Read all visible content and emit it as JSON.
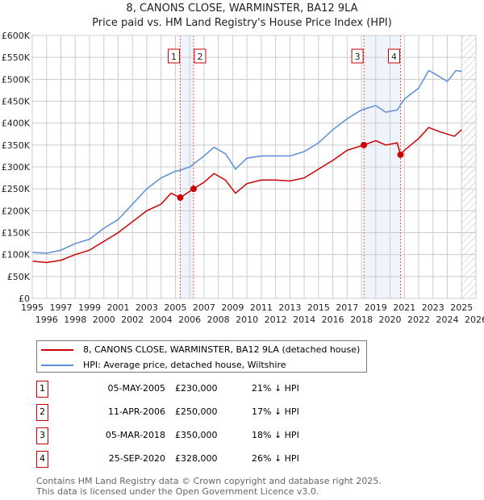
{
  "title": "8, CANONS CLOSE, WARMINSTER, BA12 9LA",
  "subtitle": "Price paid vs. HM Land Registry's House Price Index (HPI)",
  "chart_data": {
    "type": "line",
    "xlim": [
      1995,
      2026
    ],
    "ylim": [
      0,
      600000
    ],
    "x_ticks": [
      "1995",
      "1996",
      "1997",
      "1998",
      "1999",
      "2000",
      "2001",
      "2002",
      "2003",
      "2004",
      "2005",
      "2006",
      "2007",
      "2008",
      "2009",
      "2010",
      "2011",
      "2012",
      "2013",
      "2014",
      "2015",
      "2016",
      "2017",
      "2018",
      "2019",
      "2020",
      "2021",
      "2022",
      "2023",
      "2024",
      "2025",
      "2026"
    ],
    "y_ticks": [
      {
        "v": 0,
        "label": "£0"
      },
      {
        "v": 50000,
        "label": "£50K"
      },
      {
        "v": 100000,
        "label": "£100K"
      },
      {
        "v": 150000,
        "label": "£150K"
      },
      {
        "v": 200000,
        "label": "£200K"
      },
      {
        "v": 250000,
        "label": "£250K"
      },
      {
        "v": 300000,
        "label": "£300K"
      },
      {
        "v": 350000,
        "label": "£350K"
      },
      {
        "v": 400000,
        "label": "£400K"
      },
      {
        "v": 450000,
        "label": "£450K"
      },
      {
        "v": 500000,
        "label": "£500K"
      },
      {
        "v": 550000,
        "label": "£550K"
      },
      {
        "v": 600000,
        "label": "£600K"
      }
    ],
    "series": [
      {
        "name": "8, CANONS CLOSE, WARMINSTER, BA12 9LA (detached house)",
        "color": "#cc0000",
        "x": [
          1995,
          1996,
          1997,
          1998,
          1999,
          2000,
          2001,
          2002,
          2003,
          2004,
          2004.7,
          2005.34,
          2006.27,
          2007,
          2007.7,
          2008.5,
          2009.2,
          2010,
          2011,
          2012,
          2013,
          2014,
          2015,
          2016,
          2017,
          2018.17,
          2019,
          2019.7,
          2020.5,
          2020.73,
          2021,
          2022,
          2022.7,
          2023.5,
          2024.5,
          2025
        ],
        "y": [
          85000,
          82000,
          87000,
          100000,
          110000,
          130000,
          150000,
          175000,
          200000,
          215000,
          240000,
          230000,
          250000,
          265000,
          285000,
          270000,
          240000,
          262000,
          270000,
          270000,
          268000,
          275000,
          295000,
          315000,
          338000,
          350000,
          360000,
          350000,
          355000,
          328000,
          338000,
          365000,
          390000,
          380000,
          370000,
          385000
        ]
      },
      {
        "name": "HPI: Average price, detached house, Wiltshire",
        "color": "#5b8fd4",
        "x": [
          1995,
          1996,
          1997,
          1998,
          1999,
          2000,
          2001,
          2002,
          2003,
          2004,
          2005,
          2005.3,
          2006,
          2007,
          2007.7,
          2008.5,
          2009.2,
          2010,
          2011,
          2012,
          2013,
          2014,
          2015,
          2016,
          2017,
          2018,
          2019,
          2019.7,
          2020.5,
          2021,
          2022,
          2022.7,
          2023,
          2024,
          2024.6,
          2025
        ],
        "y": [
          105000,
          103000,
          110000,
          125000,
          135000,
          160000,
          180000,
          215000,
          250000,
          275000,
          290000,
          292000,
          300000,
          325000,
          345000,
          330000,
          295000,
          320000,
          325000,
          325000,
          325000,
          335000,
          355000,
          385000,
          410000,
          430000,
          440000,
          425000,
          430000,
          455000,
          480000,
          520000,
          515000,
          495000,
          520000,
          518000
        ]
      }
    ],
    "sales": [
      {
        "n": "1",
        "x": 2005.34,
        "y": 230000,
        "date": "05-MAY-2005",
        "price": "£230,000",
        "hpi": "21% ↓ HPI"
      },
      {
        "n": "2",
        "x": 2006.27,
        "y": 250000,
        "date": "11-APR-2006",
        "price": "£250,000",
        "hpi": "17% ↓ HPI"
      },
      {
        "n": "3",
        "x": 2018.17,
        "y": 350000,
        "date": "05-MAR-2018",
        "price": "£350,000",
        "hpi": "18% ↓ HPI"
      },
      {
        "n": "4",
        "x": 2020.73,
        "y": 328000,
        "date": "25-SEP-2020",
        "price": "£328,000",
        "hpi": "26% ↓ HPI"
      }
    ],
    "forecast_start": 2025
  },
  "footer": [
    "Contains HM Land Registry data © Crown copyright and database right 2025.",
    "This data is licensed under the Open Government Licence v3.0."
  ]
}
